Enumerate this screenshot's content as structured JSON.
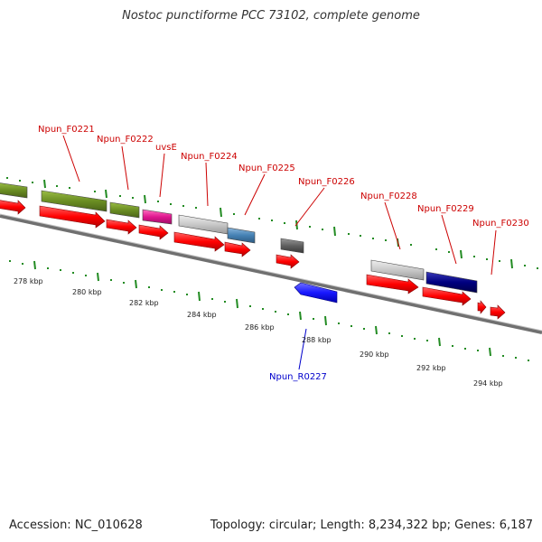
{
  "title": "Nostoc punctiforme PCC 73102, complete genome",
  "footer": {
    "accession": "Accession: NC_010628",
    "summary": "Topology: circular; Length: 8,234,322 bp; Genes: 6,187"
  },
  "colors": {
    "forward_label": "#cc0000",
    "reverse_label": "#0000cc",
    "cds": "#ff0000",
    "tick": "#228b22",
    "backbone": "#808080"
  },
  "scale_labels": [
    "278 kbp",
    "280 kbp",
    "282 kbp",
    "284 kbp",
    "286 kbp",
    "288 kbp",
    "290 kbp",
    "292 kbp",
    "294 kbp"
  ],
  "gene_labels_forward": [
    "Npun_F0221",
    "Npun_F0222",
    "uvsE",
    "Npun_F0224",
    "Npun_F0225",
    "Npun_F0226",
    "Npun_F0228",
    "Npun_F0229",
    "Npun_F0230"
  ],
  "gene_labels_reverse": [
    "Npun_R0227"
  ],
  "feature_colors": {
    "olive": "#6b8e23",
    "magenta": "#e01890",
    "light_gray": "#c8c8c8",
    "steel_blue": "#4682b4",
    "dark_gray": "#606060",
    "navy": "#000080",
    "blue": "#1818ff"
  }
}
